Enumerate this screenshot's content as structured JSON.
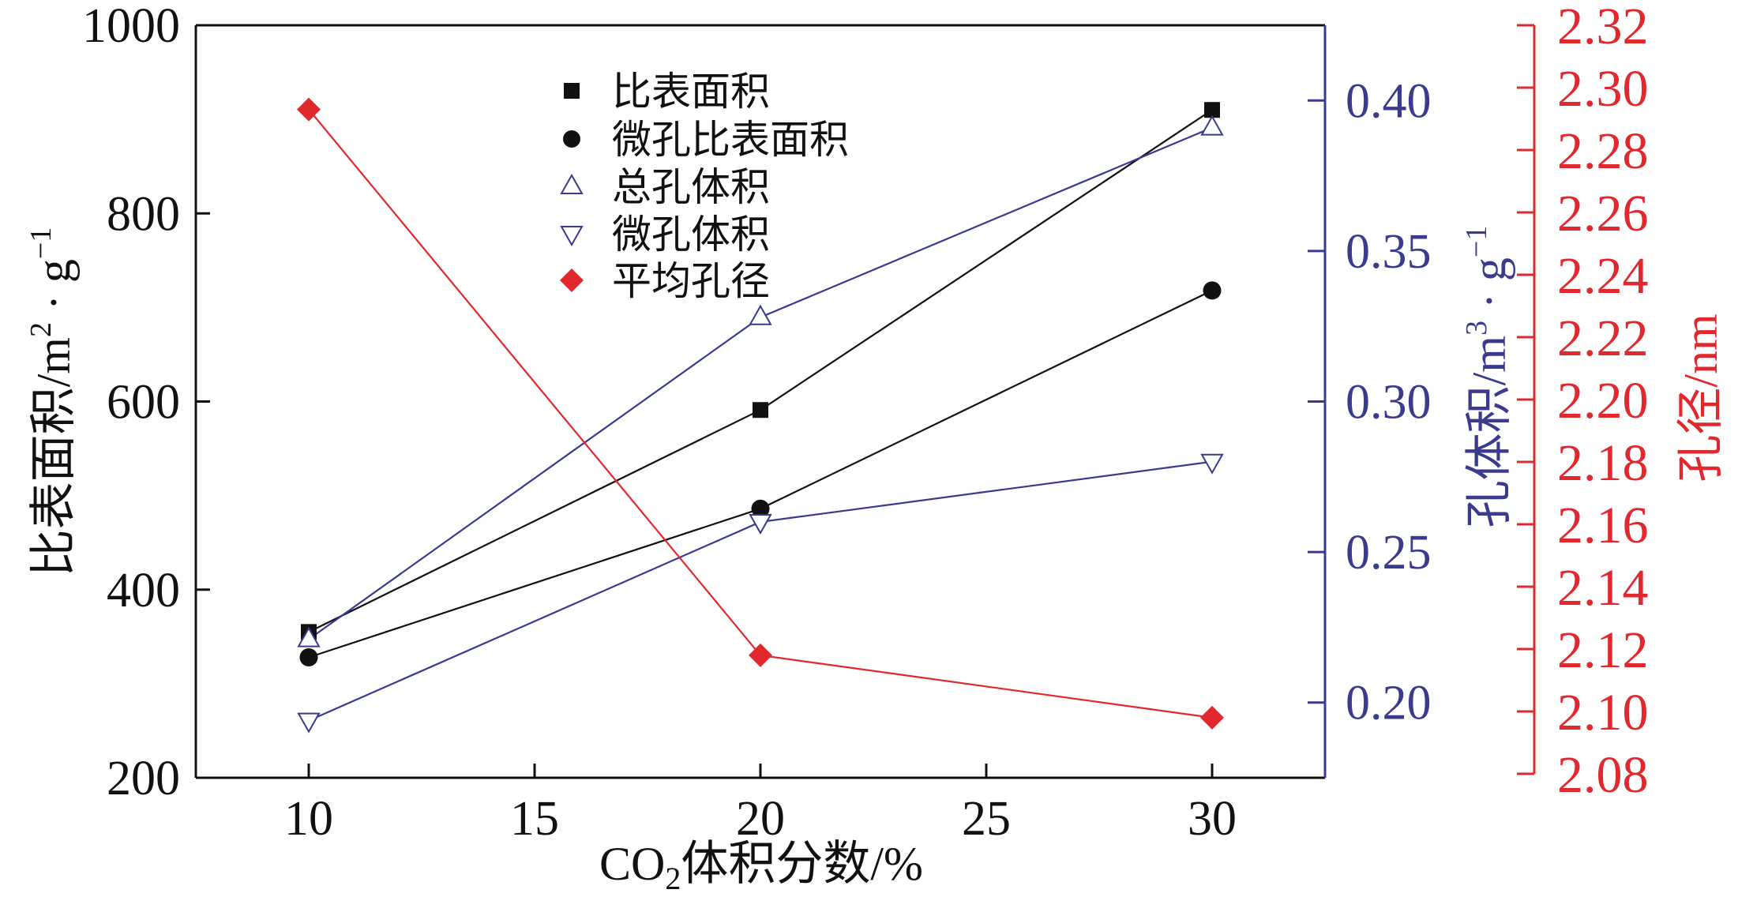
{
  "chart_data": {
    "type": "line",
    "x": [
      10,
      20,
      30
    ],
    "xlim": [
      7.5,
      32.5
    ],
    "xticks": [
      10,
      15,
      20,
      25,
      30
    ],
    "xtick_labels": [
      "10",
      "15",
      "20",
      "25",
      "30"
    ],
    "xlabel": {
      "prefix": "CO",
      "sub": "2",
      "suffix": "体积分数/%"
    },
    "axes": {
      "left": {
        "ylim": [
          200,
          1000
        ],
        "ticks": [
          200,
          400,
          600,
          800,
          1000
        ],
        "tick_labels": [
          "200",
          "400",
          "600",
          "800",
          "1000"
        ],
        "label": {
          "main": "比表面积/m",
          "sup1": "2",
          "mid": " · g",
          "sup2": "−1"
        },
        "color": "#111111"
      },
      "right_blue": {
        "ylim": [
          0.175,
          0.425
        ],
        "ticks": [
          0.2,
          0.25,
          0.3,
          0.35,
          0.4
        ],
        "tick_labels": [
          "0.20",
          "0.25",
          "0.30",
          "0.35",
          "0.40"
        ],
        "label": {
          "main": "孔体积/m",
          "sup1": "3",
          "mid": " · g",
          "sup2": "−1"
        },
        "color": "#3a3a8f"
      },
      "right_red": {
        "ylim": [
          2.08,
          2.32
        ],
        "ticks": [
          2.08,
          2.1,
          2.12,
          2.14,
          2.16,
          2.18,
          2.2,
          2.22,
          2.24,
          2.26,
          2.28,
          2.3,
          2.32
        ],
        "tick_labels": [
          "2.08",
          "2.10",
          "2.12",
          "2.14",
          "2.16",
          "2.18",
          "2.20",
          "2.22",
          "2.24",
          "2.26",
          "2.28",
          "2.30",
          "2.32"
        ],
        "label": {
          "main": "孔径/nm"
        },
        "color": "#e0282d"
      }
    },
    "series": [
      {
        "name": "比表面积",
        "axis": "left",
        "marker": "square",
        "color": "#111111",
        "values": [
          355,
          591,
          910
        ]
      },
      {
        "name": "微孔比表面积",
        "axis": "left",
        "marker": "circle",
        "color": "#111111",
        "values": [
          328,
          486,
          718
        ]
      },
      {
        "name": "总孔体积",
        "axis": "right_blue",
        "marker": "triangle-up",
        "color": "#3a3a8f",
        "values": [
          0.221,
          0.328,
          0.391
        ]
      },
      {
        "name": "微孔体积",
        "axis": "right_blue",
        "marker": "triangle-down",
        "color": "#3a3a8f",
        "values": [
          0.194,
          0.26,
          0.28
        ]
      },
      {
        "name": "平均孔径",
        "axis": "right_red",
        "marker": "diamond",
        "color": "#e0282d",
        "values": [
          2.293,
          2.118,
          2.098
        ]
      }
    ]
  }
}
